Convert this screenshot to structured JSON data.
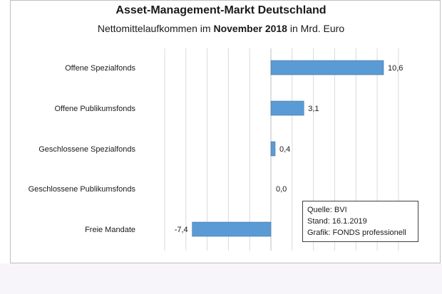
{
  "title": "Asset-Management-Markt  Deutschland",
  "subtitle": {
    "prefix": "Nettomittelaufkommen im ",
    "bold": "November 2018",
    "suffix": " in Mrd. Euro"
  },
  "source_box": {
    "line1": "Quelle: BVI",
    "line2": "Stand: 16.1.2019",
    "line3": "Grafik: FONDS professionell"
  },
  "colors": {
    "bar": "#5b9bd5",
    "bar_edge": "#41719c",
    "grid": "#d9d9d9",
    "axis": "#bfbfbf"
  },
  "chart_data": {
    "type": "bar",
    "orientation": "horizontal",
    "title": "Asset-Management-Markt  Deutschland",
    "subtitle": "Nettomittelaufkommen im November 2018 in Mrd. Euro",
    "categories": [
      "Offene Spezialfonds",
      "Offene Publikumsfonds",
      "Geschlossene Spezialfonds",
      "Geschlossene Publikumsfonds",
      "Freie Mandate"
    ],
    "values": [
      10.6,
      3.1,
      0.4,
      0.0,
      -7.4
    ],
    "value_labels": [
      "10,6",
      "3,1",
      "0,4",
      "0,0",
      "-7,4"
    ],
    "xlim": [
      -10,
      12
    ],
    "grid": true,
    "legend": false
  }
}
